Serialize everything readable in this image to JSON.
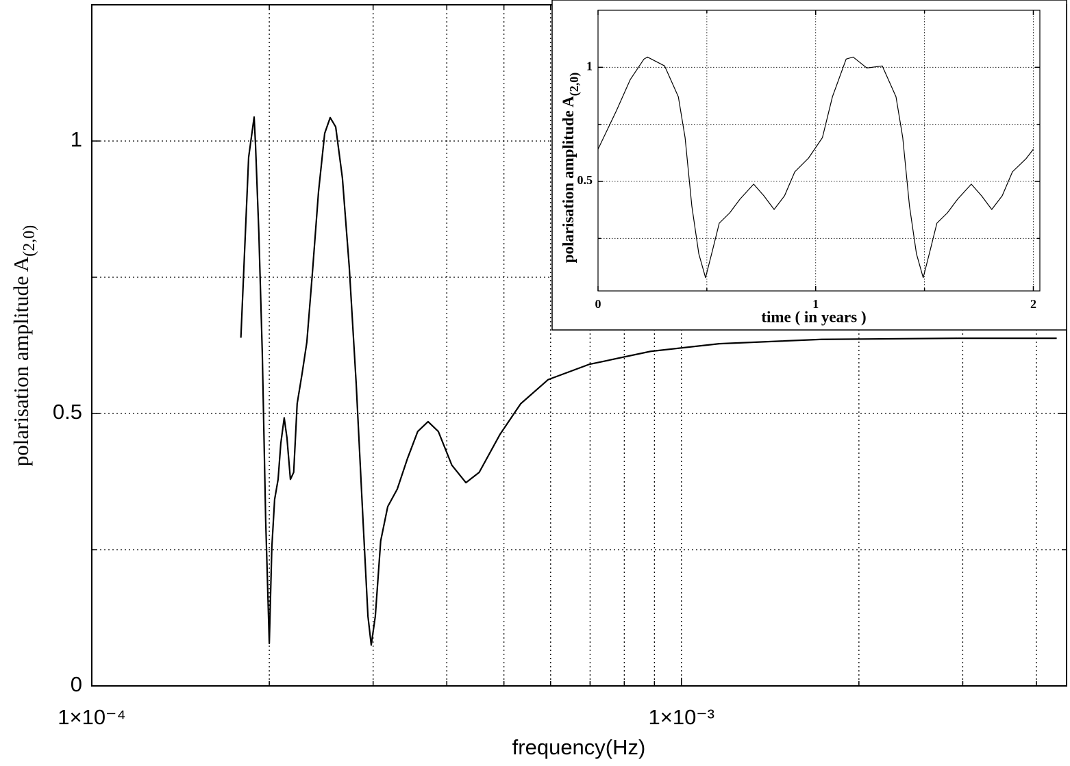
{
  "chart_data": [
    {
      "type": "line",
      "xscale": "log",
      "grid": true,
      "color": "#000000",
      "xlabel": "frequency(Hz)",
      "ylabel": "polarisation amplitude A",
      "ylabel_subscript": "(2,0)",
      "xlim": [
        0.0001,
        0.0045
      ],
      "ylim": [
        0,
        1.25
      ],
      "xticks": [
        {
          "value": 0.0001,
          "label": "1×10⁻⁴"
        },
        {
          "value": 0.001,
          "label": "1×10⁻³"
        }
      ],
      "xgrid_minor": [
        0.0002,
        0.0003,
        0.0004,
        0.0005,
        0.0006,
        0.0007,
        0.0008,
        0.0009,
        0.002,
        0.003,
        0.004
      ],
      "yticks": [
        0,
        0.5,
        1
      ],
      "ygrid_minor": [
        0.25,
        0.75
      ],
      "x": [
        0.000179,
        0.0001845,
        0.0001885,
        0.0001895,
        0.000192,
        0.0001946,
        0.0001972,
        0.0002,
        0.000202,
        0.0002042,
        0.000207,
        0.0002092,
        0.000212,
        0.0002143,
        0.0002172,
        0.00022,
        0.000223,
        0.0002274,
        0.0002316,
        0.0002366,
        0.0002424,
        0.0002483,
        0.0002537,
        0.0002592,
        0.0002661,
        0.0002733,
        0.0002808,
        0.0002884,
        0.000294,
        0.0002978,
        0.0003026,
        0.000309,
        0.0003176,
        0.0003296,
        0.000343,
        0.0003571,
        0.0003718,
        0.000387,
        0.000408,
        0.000431,
        0.000454,
        0.000492,
        0.000534,
        0.000594,
        0.000697,
        0.000887,
        0.001159,
        0.00173,
        0.00295,
        0.00433
      ],
      "values": [
        0.639,
        0.97,
        1.044,
        0.995,
        0.832,
        0.612,
        0.304,
        0.078,
        0.254,
        0.342,
        0.379,
        0.445,
        0.492,
        0.455,
        0.379,
        0.392,
        0.518,
        0.574,
        0.631,
        0.756,
        0.907,
        1.014,
        1.043,
        1.026,
        0.932,
        0.769,
        0.555,
        0.304,
        0.128,
        0.075,
        0.128,
        0.266,
        0.329,
        0.361,
        0.417,
        0.467,
        0.485,
        0.467,
        0.405,
        0.373,
        0.392,
        0.461,
        0.518,
        0.562,
        0.59,
        0.614,
        0.628,
        0.636,
        0.638,
        0.638
      ]
    },
    {
      "type": "line",
      "grid": true,
      "color": "#000000",
      "xlabel": "time ( in years )",
      "ylabel": "polarisation amplitude A",
      "ylabel_subscript": "(2,0)",
      "xlim": [
        0,
        2.03
      ],
      "ylim": [
        0.02,
        1.25
      ],
      "xticks": [
        0,
        1,
        2
      ],
      "xgrid_minor": [
        0.5,
        1.5
      ],
      "yticks": [
        0.5,
        1
      ],
      "ygrid_minor": [
        0.25,
        0.75
      ],
      "x": [
        0,
        0.085,
        0.148,
        0.211,
        0.227,
        0.306,
        0.369,
        0.4,
        0.431,
        0.463,
        0.494,
        0.526,
        0.557,
        0.605,
        0.652,
        0.715,
        0.762,
        0.809,
        0.857,
        0.904,
        0.967,
        1.031,
        1.077,
        1.14,
        1.172,
        1.235,
        1.306,
        1.369,
        1.4,
        1.431,
        1.463,
        1.494,
        1.526,
        1.557,
        1.605,
        1.652,
        1.715,
        1.762,
        1.809,
        1.857,
        1.904,
        1.967,
        2.0
      ],
      "values": [
        0.641,
        0.811,
        0.946,
        1.036,
        1.045,
        1.006,
        0.871,
        0.692,
        0.392,
        0.183,
        0.078,
        0.198,
        0.317,
        0.362,
        0.422,
        0.488,
        0.437,
        0.377,
        0.437,
        0.542,
        0.602,
        0.692,
        0.871,
        1.036,
        1.045,
        0.997,
        1.006,
        0.871,
        0.692,
        0.392,
        0.183,
        0.078,
        0.198,
        0.317,
        0.362,
        0.422,
        0.488,
        0.437,
        0.377,
        0.437,
        0.542,
        0.6,
        0.641
      ]
    }
  ]
}
